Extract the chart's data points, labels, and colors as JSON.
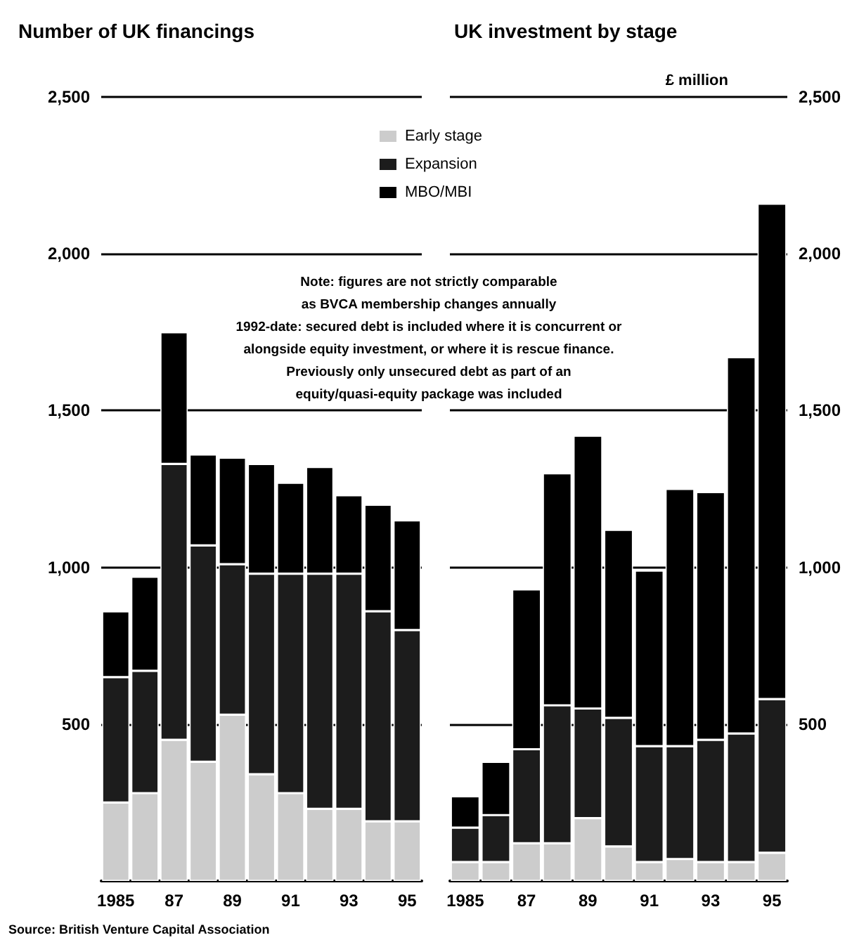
{
  "chart_data": [
    {
      "type": "bar",
      "title": "Number of UK financings",
      "stacked": true,
      "grid": "y",
      "legend": "top",
      "categories": [
        "1985",
        null,
        "87",
        null,
        "89",
        null,
        "91",
        null,
        "93",
        null,
        "95"
      ],
      "ylim": [
        0,
        2500
      ],
      "yticks": [
        500,
        {
          "value": 1000,
          "label": "1,000"
        },
        {
          "value": 1500,
          "label": "1,500"
        },
        {
          "value": 2000,
          "label": "2,000"
        },
        {
          "value": 2500,
          "label": "2,500"
        }
      ],
      "series": [
        {
          "name": "Early stage",
          "color": "#cccccc",
          "values": [
            250,
            280,
            450,
            380,
            530,
            340,
            280,
            230,
            230,
            190,
            190
          ]
        },
        {
          "name": "Expansion",
          "color": "#1c1c1c",
          "values": [
            400,
            390,
            880,
            690,
            480,
            640,
            700,
            750,
            750,
            670,
            610
          ]
        },
        {
          "name": "MBO/MBI",
          "color": "#000000",
          "values": [
            210,
            300,
            420,
            290,
            340,
            350,
            290,
            340,
            250,
            340,
            350
          ]
        }
      ],
      "annotations": [
        "Note: figures are not strictly comparable\nas BVCA membership changes annually\n1992-date: secured debt is included where it is concurrent or\nalongside equity investment, or where it is rescue finance.\nPreviously only unsecured debt as part of an\nequity/quasi-equity package was included",
        "Source: British Venture Capital Association"
      ]
    },
    {
      "type": "bar",
      "title": "UK investment by stage",
      "y2label": "£ million",
      "stacked": true,
      "grid": "y",
      "categories": [
        "1985",
        null,
        "87",
        null,
        "89",
        null,
        "91",
        null,
        "93",
        null,
        "95"
      ],
      "y2lim": [
        0,
        2500
      ],
      "y2ticks": [
        500,
        {
          "value": 1000,
          "label": "1,000"
        },
        {
          "value": 1500,
          "label": "1,500"
        },
        {
          "value": 2000,
          "label": "2,000"
        },
        {
          "value": 2500,
          "label": "2,500"
        }
      ],
      "series": [
        {
          "color": "#cccccc",
          "axis": "y2",
          "values": [
            60,
            60,
            120,
            120,
            200,
            110,
            60,
            70,
            60,
            60,
            90
          ]
        },
        {
          "color": "#1c1c1c",
          "axis": "y2",
          "values": [
            110,
            150,
            300,
            440,
            350,
            410,
            370,
            360,
            390,
            410,
            490
          ]
        },
        {
          "color": "#000000",
          "axis": "y2",
          "values": [
            100,
            170,
            510,
            740,
            870,
            600,
            560,
            820,
            790,
            1200,
            1580
          ]
        }
      ]
    }
  ]
}
